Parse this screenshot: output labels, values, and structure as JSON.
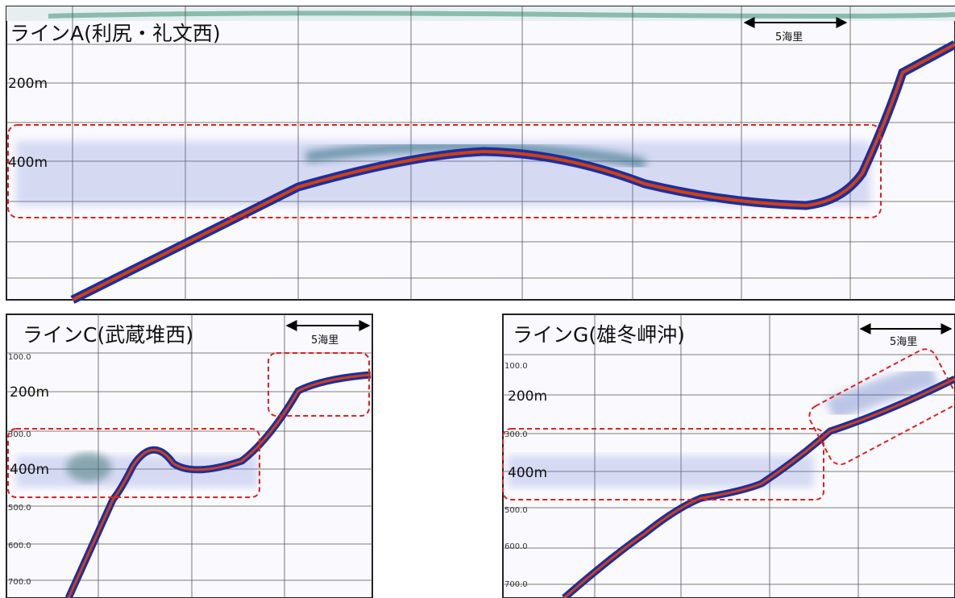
{
  "panels": [
    {
      "title": "ラインA(利尻・礼文西)",
      "scale": "5海里",
      "depths": [
        "200m",
        "400m"
      ],
      "ticks": []
    },
    {
      "title": "ラインC(武蔵堆西)",
      "scale": "5海里",
      "depths": [
        "200m",
        "400m"
      ],
      "ticks": [
        "100.0",
        "300.0",
        "500.0",
        "600.0",
        "700.0"
      ]
    },
    {
      "title": "ラインG(雄冬岬沖)",
      "scale": "5海里",
      "depths": [
        "200m",
        "400m"
      ],
      "ticks": [
        "100.0",
        "300.0",
        "500.0",
        "600.0",
        "700.0"
      ]
    }
  ]
}
